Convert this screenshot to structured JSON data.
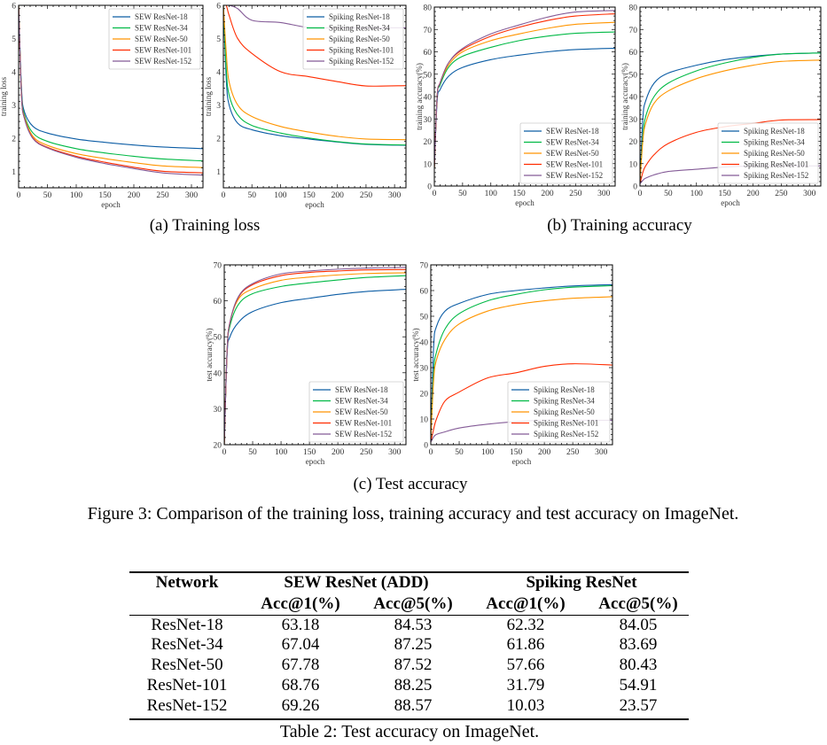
{
  "captions": {
    "a": "(a)  Training loss",
    "b": "(b)  Training accuracy",
    "c": "(c)  Test accuracy",
    "figure": "Figure 3: Comparison of the training loss, training accuracy and test accuracy on ImageNet."
  },
  "colors": {
    "r18": "#0C5DA5",
    "r34": "#00B945",
    "r50": "#FF9500",
    "r101": "#FF2C00",
    "r152": "#845B97"
  },
  "chart_data": [
    {
      "type": "line",
      "xlabel": "epoch",
      "ylabel": "training loss",
      "xlim": [
        0,
        320
      ],
      "ylim": [
        0.5,
        6
      ],
      "xticks": [
        0,
        50,
        100,
        150,
        200,
        250,
        300
      ],
      "yticks": [
        1,
        2,
        3,
        4,
        5,
        6
      ],
      "legend": "top-right",
      "x": [
        0,
        5,
        10,
        25,
        50,
        100,
        150,
        200,
        250,
        320
      ],
      "series": [
        {
          "name": "SEW ResNet-18",
          "color": "#0C5DA5",
          "y": [
            6.0,
            3.5,
            2.8,
            2.35,
            2.15,
            1.97,
            1.87,
            1.79,
            1.73,
            1.68
          ]
        },
        {
          "name": "SEW ResNet-34",
          "color": "#00B945",
          "y": [
            6.0,
            3.4,
            2.7,
            2.15,
            1.9,
            1.68,
            1.55,
            1.45,
            1.37,
            1.31
          ]
        },
        {
          "name": "SEW ResNet-50",
          "color": "#FF9500",
          "y": [
            6.0,
            3.3,
            2.65,
            2.05,
            1.78,
            1.53,
            1.38,
            1.26,
            1.16,
            1.11
          ]
        },
        {
          "name": "SEW ResNet-101",
          "color": "#FF2C00",
          "y": [
            6.0,
            3.3,
            2.6,
            2.0,
            1.72,
            1.45,
            1.27,
            1.12,
            1.0,
            0.95
          ]
        },
        {
          "name": "SEW ResNet-152",
          "color": "#845B97",
          "y": [
            6.0,
            3.3,
            2.6,
            1.98,
            1.7,
            1.42,
            1.23,
            1.08,
            0.95,
            0.88
          ]
        }
      ]
    },
    {
      "type": "line",
      "xlabel": "epoch",
      "ylabel": "training loss",
      "xlim": [
        0,
        320
      ],
      "ylim": [
        0.5,
        6
      ],
      "xticks": [
        0,
        50,
        100,
        150,
        200,
        250,
        300
      ],
      "yticks": [
        1,
        2,
        3,
        4,
        5,
        6
      ],
      "legend": "top-right",
      "x": [
        0,
        5,
        10,
        25,
        50,
        100,
        150,
        200,
        250,
        320
      ],
      "series": [
        {
          "name": "Spiking ResNet-18",
          "color": "#0C5DA5",
          "y": [
            6.0,
            3.8,
            3.0,
            2.45,
            2.25,
            2.07,
            1.97,
            1.88,
            1.81,
            1.78
          ]
        },
        {
          "name": "Spiking ResNet-34",
          "color": "#00B945",
          "y": [
            6.0,
            4.1,
            3.3,
            2.7,
            2.38,
            2.15,
            2.0,
            1.89,
            1.82,
            1.79
          ]
        },
        {
          "name": "Spiking ResNet-50",
          "color": "#FF9500",
          "y": [
            6.0,
            4.6,
            3.7,
            3.0,
            2.65,
            2.35,
            2.18,
            2.05,
            1.97,
            1.95
          ]
        },
        {
          "name": "Spiking ResNet-101",
          "color": "#FF2C00",
          "y": [
            6.0,
            6.0,
            5.7,
            5.0,
            4.55,
            4.0,
            3.85,
            3.7,
            3.57,
            3.58
          ]
        },
        {
          "name": "Spiking ResNet-152",
          "color": "#845B97",
          "y": [
            6.0,
            6.0,
            6.0,
            5.9,
            5.55,
            5.48,
            5.33,
            5.32,
            5.32,
            5.32
          ]
        }
      ]
    },
    {
      "type": "line",
      "xlabel": "epoch",
      "ylabel": "training accuracy(%)",
      "xlim": [
        0,
        320
      ],
      "ylim": [
        0,
        80
      ],
      "xticks": [
        0,
        50,
        100,
        150,
        200,
        250,
        300
      ],
      "yticks": [
        0,
        10,
        20,
        30,
        40,
        50,
        60,
        70,
        80
      ],
      "legend": "bottom-right",
      "x": [
        0,
        5,
        10,
        25,
        50,
        100,
        150,
        200,
        250,
        320
      ],
      "series": [
        {
          "name": "SEW ResNet-18",
          "color": "#0C5DA5",
          "y": [
            8,
            38,
            43,
            49,
            53,
            56.5,
            58.5,
            60,
            61,
            61.6
          ]
        },
        {
          "name": "SEW ResNet-34",
          "color": "#00B945",
          "y": [
            8,
            40,
            45,
            53,
            58,
            62,
            65,
            67,
            68.3,
            68.9
          ]
        },
        {
          "name": "SEW ResNet-50",
          "color": "#FF9500",
          "y": [
            8,
            40,
            46,
            54,
            60,
            65,
            68,
            70.5,
            72.3,
            73.2
          ]
        },
        {
          "name": "SEW ResNet-101",
          "color": "#FF2C00",
          "y": [
            8,
            40,
            46,
            55,
            61,
            67,
            71,
            74,
            76,
            77
          ]
        },
        {
          "name": "SEW ResNet-152",
          "color": "#845B97",
          "y": [
            8,
            40,
            46,
            55,
            61.5,
            68,
            72,
            75.5,
            77.8,
            78.5
          ]
        }
      ]
    },
    {
      "type": "line",
      "xlabel": "epoch",
      "ylabel": "training accuracy(%)",
      "xlim": [
        0,
        320
      ],
      "ylim": [
        0,
        80
      ],
      "xticks": [
        0,
        50,
        100,
        150,
        200,
        250,
        300
      ],
      "yticks": [
        0,
        10,
        20,
        30,
        40,
        50,
        60,
        70,
        80
      ],
      "legend": "bottom-right",
      "x": [
        0,
        5,
        10,
        25,
        50,
        100,
        150,
        200,
        250,
        320
      ],
      "series": [
        {
          "name": "Spiking ResNet-18",
          "color": "#0C5DA5",
          "y": [
            2,
            30,
            38,
            46,
            50.5,
            54,
            56.5,
            58,
            59,
            59.5
          ]
        },
        {
          "name": "Spiking ResNet-34",
          "color": "#00B945",
          "y": [
            2,
            22,
            31,
            40,
            46,
            51.5,
            55,
            57.5,
            59,
            59.5
          ]
        },
        {
          "name": "Spiking ResNet-50",
          "color": "#FF9500",
          "y": [
            2,
            20,
            28,
            37,
            42.5,
            48,
            51.5,
            54,
            55.7,
            56.3
          ]
        },
        {
          "name": "Spiking ResNet-101",
          "color": "#FF2C00",
          "y": [
            1,
            6,
            9,
            14,
            19,
            24,
            26.5,
            28,
            29.5,
            29.7
          ]
        },
        {
          "name": "Spiking ResNet-152",
          "color": "#845B97",
          "y": [
            1,
            2.5,
            3.5,
            5,
            6.5,
            7.5,
            8.5,
            9,
            9,
            9
          ]
        }
      ]
    },
    {
      "type": "line",
      "xlabel": "epoch",
      "ylabel": "test accuracy(%)",
      "xlim": [
        0,
        320
      ],
      "ylim": [
        20,
        70
      ],
      "xticks": [
        0,
        50,
        100,
        150,
        200,
        250,
        300
      ],
      "yticks": [
        20,
        30,
        40,
        50,
        60,
        70
      ],
      "legend": "bottom-right",
      "x": [
        0,
        5,
        10,
        25,
        50,
        100,
        150,
        200,
        250,
        320
      ],
      "series": [
        {
          "name": "SEW ResNet-18",
          "color": "#0C5DA5",
          "y": [
            20,
            45,
            50,
            54,
            57,
            59.5,
            60.7,
            61.8,
            62.6,
            63.2
          ]
        },
        {
          "name": "SEW ResNet-34",
          "color": "#00B945",
          "y": [
            20,
            46,
            53,
            59,
            62,
            64,
            65,
            65.8,
            66.5,
            67
          ]
        },
        {
          "name": "SEW ResNet-50",
          "color": "#FF9500",
          "y": [
            20,
            46,
            54,
            60.5,
            63.3,
            65.7,
            66.6,
            67.2,
            67.6,
            67.8
          ]
        },
        {
          "name": "SEW ResNet-101",
          "color": "#FF2C00",
          "y": [
            20,
            46,
            54,
            61,
            64.5,
            67,
            67.9,
            68.3,
            68.6,
            68.7
          ]
        },
        {
          "name": "SEW ResNet-152",
          "color": "#845B97",
          "y": [
            20,
            46,
            54,
            61.2,
            64.8,
            67.5,
            68.3,
            68.8,
            69.1,
            69.3
          ]
        }
      ]
    },
    {
      "type": "line",
      "xlabel": "epoch",
      "ylabel": "test accuracy(%)",
      "xlim": [
        0,
        320
      ],
      "ylim": [
        0,
        70
      ],
      "xticks": [
        0,
        50,
        100,
        150,
        200,
        250,
        300
      ],
      "yticks": [
        0,
        10,
        20,
        30,
        40,
        50,
        60,
        70
      ],
      "legend": "bottom-right",
      "x": [
        0,
        5,
        10,
        25,
        50,
        100,
        150,
        200,
        250,
        320
      ],
      "series": [
        {
          "name": "Spiking ResNet-18",
          "color": "#0C5DA5",
          "y": [
            2,
            38,
            46,
            52,
            55,
            58.5,
            60,
            61,
            61.8,
            62.3
          ]
        },
        {
          "name": "Spiking ResNet-34",
          "color": "#00B945",
          "y": [
            2,
            28,
            36,
            45,
            51,
            56,
            58.5,
            60.3,
            61.3,
            61.9
          ]
        },
        {
          "name": "Spiking ResNet-50",
          "color": "#FF9500",
          "y": [
            2,
            25,
            33,
            41,
            47,
            52,
            54.5,
            56,
            57,
            57.6
          ]
        },
        {
          "name": "Spiking ResNet-101",
          "color": "#FF2C00",
          "y": [
            1,
            6,
            10,
            17,
            20.5,
            26,
            28,
            30.5,
            31.5,
            31
          ]
        },
        {
          "name": "Spiking ResNet-152",
          "color": "#845B97",
          "y": [
            1,
            3,
            4,
            5,
            6.5,
            8,
            9,
            9.5,
            9.5,
            9.5
          ]
        }
      ]
    }
  ],
  "table": {
    "caption": "Table 2: Test accuracy on ImageNet.",
    "header": {
      "network": "Network",
      "sew": "SEW ResNet (ADD)",
      "spiking": "Spiking ResNet",
      "sew_acc1": "Acc@1(%)",
      "sew_acc5": "Acc@5(%)",
      "sp_acc1": "Acc@1(%)",
      "sp_acc5": "Acc@5(%)"
    },
    "rows": [
      [
        "ResNet-18",
        "63.18",
        "84.53",
        "62.32",
        "84.05"
      ],
      [
        "ResNet-34",
        "67.04",
        "87.25",
        "61.86",
        "83.69"
      ],
      [
        "ResNet-50",
        "67.78",
        "87.52",
        "57.66",
        "80.43"
      ],
      [
        "ResNet-101",
        "68.76",
        "88.25",
        "31.79",
        "54.91"
      ],
      [
        "ResNet-152",
        "69.26",
        "88.57",
        "10.03",
        "23.57"
      ]
    ]
  }
}
